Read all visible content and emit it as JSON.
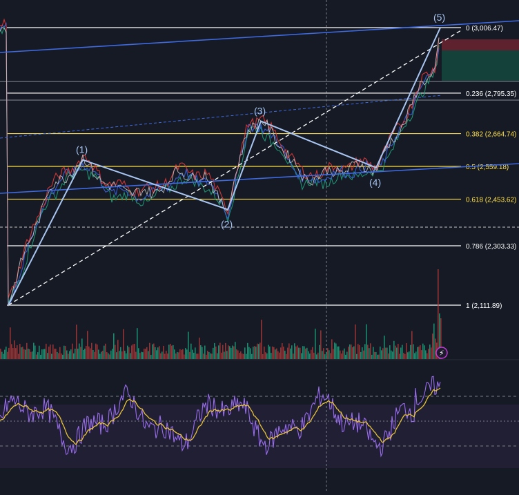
{
  "chart_data": {
    "type": "line",
    "subtype": "candlestick-with-elliott-wave-and-fibonacci",
    "title": "",
    "colors": {
      "background": "#161a25",
      "price": "#c9c9c9",
      "ma_fast": "#e23b3b",
      "ma_mid": "#3b63e2",
      "ma_slow": "#1f9e7a",
      "wave": "#a9c6f2",
      "channel": "#3f6ae0",
      "fib_white": "#ffffff",
      "fib_yellow": "#ffe04a",
      "rsi": "#9a6cf0",
      "rsi_ma": "#e8c33a",
      "volume_up": "#1f9e7a",
      "volume_down": "#a83a3a"
    },
    "fib_levels": [
      {
        "label": "0 (3,006.47)",
        "ratio": 0,
        "value": 3006.47,
        "color": "white"
      },
      {
        "label": "0.236 (2,795.35)",
        "ratio": 0.236,
        "value": 2795.35,
        "color": "white"
      },
      {
        "label": "0.382 (2,664.74)",
        "ratio": 0.382,
        "value": 2664.74,
        "color": "yellow"
      },
      {
        "label": "0.5 (2,559.18)",
        "ratio": 0.5,
        "value": 2559.18,
        "color": "yellow"
      },
      {
        "label": "0.618 (2,453.62)",
        "ratio": 0.618,
        "value": 2453.62,
        "color": "yellow"
      },
      {
        "label": "0.786 (2,303.33)",
        "ratio": 0.786,
        "value": 2303.33,
        "color": "white"
      },
      {
        "label": "1 (2,111.89)",
        "ratio": 1,
        "value": 2111.89,
        "color": "white"
      }
    ],
    "waves": [
      {
        "label": "(1)",
        "value": 2580
      },
      {
        "label": "(2)",
        "value": 2420
      },
      {
        "label": "(3)",
        "value": 2705
      },
      {
        "label": "(4)",
        "value": 2555
      },
      {
        "label": "(5)",
        "value": 3006.47
      }
    ],
    "wave_start_value": 2111.89,
    "rsi_levels": [
      70,
      50,
      30
    ]
  }
}
